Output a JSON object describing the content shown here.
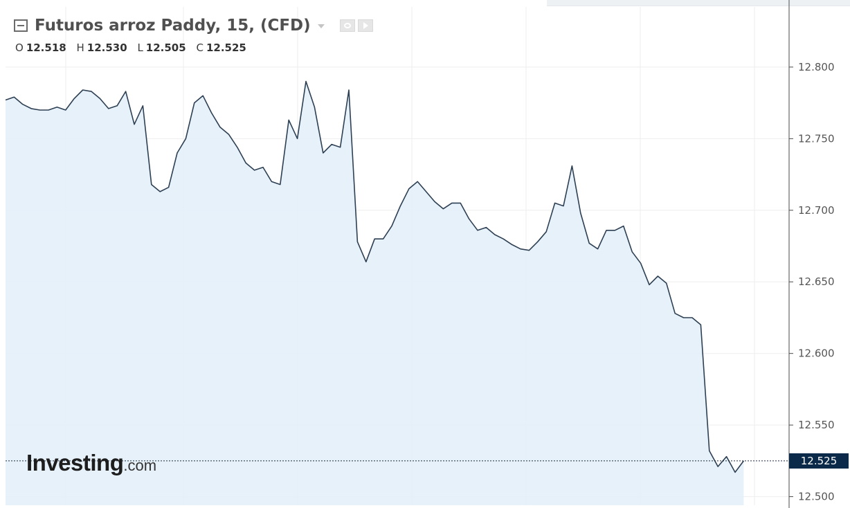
{
  "header": {
    "title": "Futuros arroz Paddy, 15, (CFD)",
    "icons": [
      "collapse-icon",
      "dropdown-icon",
      "eye-icon",
      "play-icon"
    ]
  },
  "ohlc": {
    "open_label": "O",
    "open": "12.518",
    "high_label": "H",
    "high": "12.530",
    "low_label": "L",
    "low": "12.505",
    "close_label": "C",
    "close": "12.525"
  },
  "logo": {
    "main": "Investing",
    "suffix": ".com"
  },
  "colors": {
    "line": "#2d3f52",
    "area": "#e3eef9",
    "grid": "#eeeeee",
    "last_price_bg": "#0b2a4a",
    "last_price_text": "#ffffff"
  },
  "chart_data": {
    "type": "area",
    "title": "Futuros arroz Paddy, 15, (CFD)",
    "xlabel": "",
    "ylabel": "",
    "y_axis_position": "right",
    "ylim": [
      12.494,
      12.842
    ],
    "y_ticks": [
      "12.800",
      "12.750",
      "12.700",
      "12.650",
      "12.600",
      "12.550",
      "12.500"
    ],
    "y_tick_values": [
      12.8,
      12.75,
      12.7,
      12.65,
      12.6,
      12.55,
      12.5
    ],
    "grid": true,
    "last_price": 12.525,
    "last_price_label": "12.525",
    "series": [
      {
        "values": [
          12.777,
          12.779,
          12.774,
          12.771,
          12.77,
          12.77,
          12.772,
          12.77,
          12.778,
          12.784,
          12.783,
          12.778,
          12.771,
          12.773,
          12.783,
          12.76,
          12.773,
          12.718,
          12.713,
          12.716,
          12.74,
          12.75,
          12.775,
          12.78,
          12.768,
          12.758,
          12.753,
          12.744,
          12.733,
          12.728,
          12.73,
          12.72,
          12.718,
          12.763,
          12.75,
          12.79,
          12.772,
          12.74,
          12.746,
          12.744,
          12.784,
          12.678,
          12.664,
          12.68,
          12.68,
          12.689,
          12.703,
          12.715,
          12.72,
          12.713,
          12.706,
          12.701,
          12.705,
          12.705,
          12.694,
          12.686,
          12.688,
          12.683,
          12.68,
          12.676,
          12.673,
          12.672,
          12.678,
          12.685,
          12.705,
          12.703,
          12.731,
          12.698,
          12.677,
          12.673,
          12.686,
          12.686,
          12.689,
          12.671,
          12.663,
          12.648,
          12.654,
          12.649,
          12.628,
          12.625,
          12.625,
          12.62,
          12.532,
          12.521,
          12.528,
          12.517,
          12.525
        ]
      }
    ]
  }
}
